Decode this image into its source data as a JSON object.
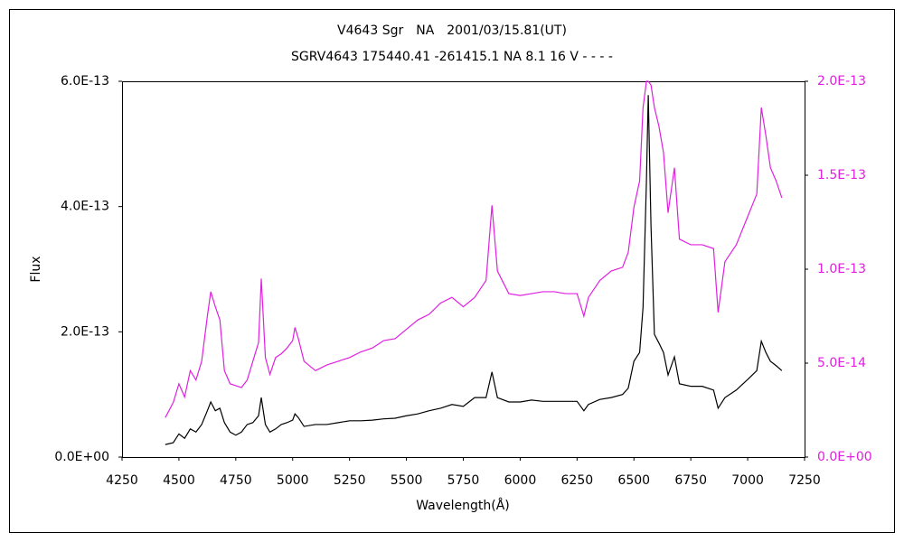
{
  "chart_data": {
    "type": "line",
    "title": "V4643 Sgr　NA　2001/03/15.81(UT)",
    "subtitle": "SGRV4643 175440.41 -261415.1 NA 8.1 16 V - - - -",
    "x_label": "Wavelength(Å)",
    "y_label": "Flux",
    "xlim": [
      4250,
      7250
    ],
    "xticks": [
      4250,
      4500,
      4750,
      5000,
      5250,
      5500,
      5750,
      6000,
      6250,
      6500,
      6750,
      7000,
      7250
    ],
    "ylim": [
      0,
      6e-13
    ],
    "yticks": [
      {
        "value": 0,
        "label": "0.0E+00"
      },
      {
        "value": 2e-13,
        "label": "2.0E-13"
      },
      {
        "value": 4e-13,
        "label": "4.0E-13"
      },
      {
        "value": 6e-13,
        "label": "6.0E-13"
      }
    ],
    "y2lim": [
      0,
      2e-13
    ],
    "y2ticks": [
      {
        "value": 0,
        "label": "0.0E+00"
      },
      {
        "value": 5e-14,
        "label": "5.0E-14"
      },
      {
        "value": 1e-13,
        "label": "1.0E-13"
      },
      {
        "value": 1.5e-13,
        "label": "1.5E-13"
      },
      {
        "value": 2e-13,
        "label": "2.0E-13"
      }
    ],
    "y2_color": "#e020e0",
    "x": [
      4440,
      4475,
      4500,
      4525,
      4550,
      4575,
      4600,
      4625,
      4640,
      4660,
      4680,
      4700,
      4725,
      4750,
      4775,
      4800,
      4825,
      4850,
      4862,
      4880,
      4900,
      4925,
      4950,
      4975,
      5000,
      5010,
      5025,
      5050,
      5100,
      5150,
      5200,
      5250,
      5300,
      5350,
      5400,
      5450,
      5500,
      5550,
      5600,
      5650,
      5700,
      5750,
      5800,
      5850,
      5876,
      5900,
      5950,
      6000,
      6050,
      6100,
      6150,
      6200,
      6250,
      6280,
      6300,
      6350,
      6400,
      6450,
      6475,
      6500,
      6525,
      6540,
      6555,
      6563,
      6575,
      6590,
      6610,
      6630,
      6650,
      6678,
      6700,
      6750,
      6800,
      6850,
      6870,
      6900,
      6950,
      7000,
      7040,
      7060,
      7080,
      7100,
      7125,
      7150
    ],
    "series": [
      {
        "color": "#000000",
        "values": [
          2e-14,
          2.3e-14,
          3.7e-14,
          3e-14,
          4.5e-14,
          4e-14,
          5.2e-14,
          7.4e-14,
          8.8e-14,
          7.4e-14,
          7.8e-14,
          5.5e-14,
          4e-14,
          3.5e-14,
          4e-14,
          5.2e-14,
          5.5e-14,
          6.6e-14,
          9.5e-14,
          5.2e-14,
          4e-14,
          4.5e-14,
          5.2e-14,
          5.5e-14,
          5.9e-14,
          6.9e-14,
          6.3e-14,
          4.9e-14,
          5.2e-14,
          5.2e-14,
          5.5e-14,
          5.8e-14,
          5.8e-14,
          5.9e-14,
          6.1e-14,
          6.2e-14,
          6.6e-14,
          6.9e-14,
          7.4e-14,
          7.8e-14,
          8.4e-14,
          8.1e-14,
          9.5e-14,
          9.5e-14,
          1.36e-13,
          9.5e-14,
          8.8e-14,
          8.8e-14,
          9.1e-14,
          8.9e-14,
          8.9e-14,
          8.9e-14,
          8.9e-14,
          7.4e-14,
          8.4e-14,
          9.2e-14,
          9.5e-14,
          1e-13,
          1.1e-13,
          1.53e-13,
          1.67e-13,
          2.39e-13,
          4.41e-13,
          5.78e-13,
          3.69e-13,
          1.96e-13,
          1.82e-13,
          1.67e-13,
          1.31e-13,
          1.6e-13,
          1.17e-13,
          1.13e-13,
          1.13e-13,
          1.07e-13,
          7.8e-14,
          9.5e-14,
          1.07e-13,
          1.24e-13,
          1.38e-13,
          1.85e-13,
          1.67e-13,
          1.53e-13,
          1.46e-13,
          1.38e-13
        ]
      },
      {
        "color": "#e020e0",
        "axis": "y2",
        "values": [
          2.1e-14,
          2.9e-14,
          3.9e-14,
          3.2e-14,
          4.6e-14,
          4.1e-14,
          5.1e-14,
          7.5e-14,
          8.8e-14,
          8e-14,
          7.3e-14,
          4.6e-14,
          3.9e-14,
          3.8e-14,
          3.7e-14,
          4.1e-14,
          5.1e-14,
          6.1e-14,
          9.5e-14,
          5.3e-14,
          4.4e-14,
          5.3e-14,
          5.5e-14,
          5.8e-14,
          6.2e-14,
          6.9e-14,
          6.3e-14,
          5.1e-14,
          4.6e-14,
          4.9e-14,
          5.1e-14,
          5.3e-14,
          5.6e-14,
          5.8e-14,
          6.2e-14,
          6.3e-14,
          6.8e-14,
          7.3e-14,
          7.6e-14,
          8.2e-14,
          8.5e-14,
          8e-14,
          8.5e-14,
          9.4e-14,
          1.34e-13,
          9.9e-14,
          8.7e-14,
          8.6e-14,
          8.7e-14,
          8.8e-14,
          8.8e-14,
          8.7e-14,
          8.7e-14,
          7.5e-14,
          8.5e-14,
          9.4e-14,
          9.9e-14,
          1.01e-13,
          1.09e-13,
          1.33e-13,
          1.47e-13,
          1.86e-13,
          2e-13,
          2e-13,
          1.98e-13,
          1.86e-13,
          1.76e-13,
          1.62e-13,
          1.3e-13,
          1.54e-13,
          1.16e-13,
          1.13e-13,
          1.13e-13,
          1.11e-13,
          7.7e-14,
          1.04e-13,
          1.13e-13,
          1.28e-13,
          1.4e-13,
          1.86e-13,
          1.71e-13,
          1.54e-13,
          1.47e-13,
          1.38e-13
        ]
      }
    ]
  }
}
